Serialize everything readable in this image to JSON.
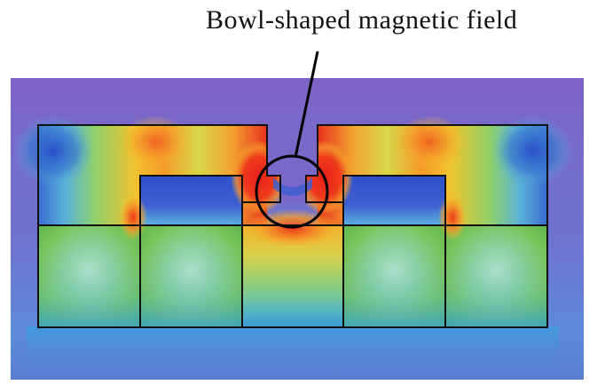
{
  "annotation": {
    "label": "Bowl-shaped magnetic field"
  },
  "colors": {
    "background_field": "#7a68c8",
    "low_field": "#2f5fd0",
    "mid_field": "#7fc85a",
    "high_field": "#f2c22e",
    "peak_field": "#e8281e",
    "outline": "#111111"
  }
}
